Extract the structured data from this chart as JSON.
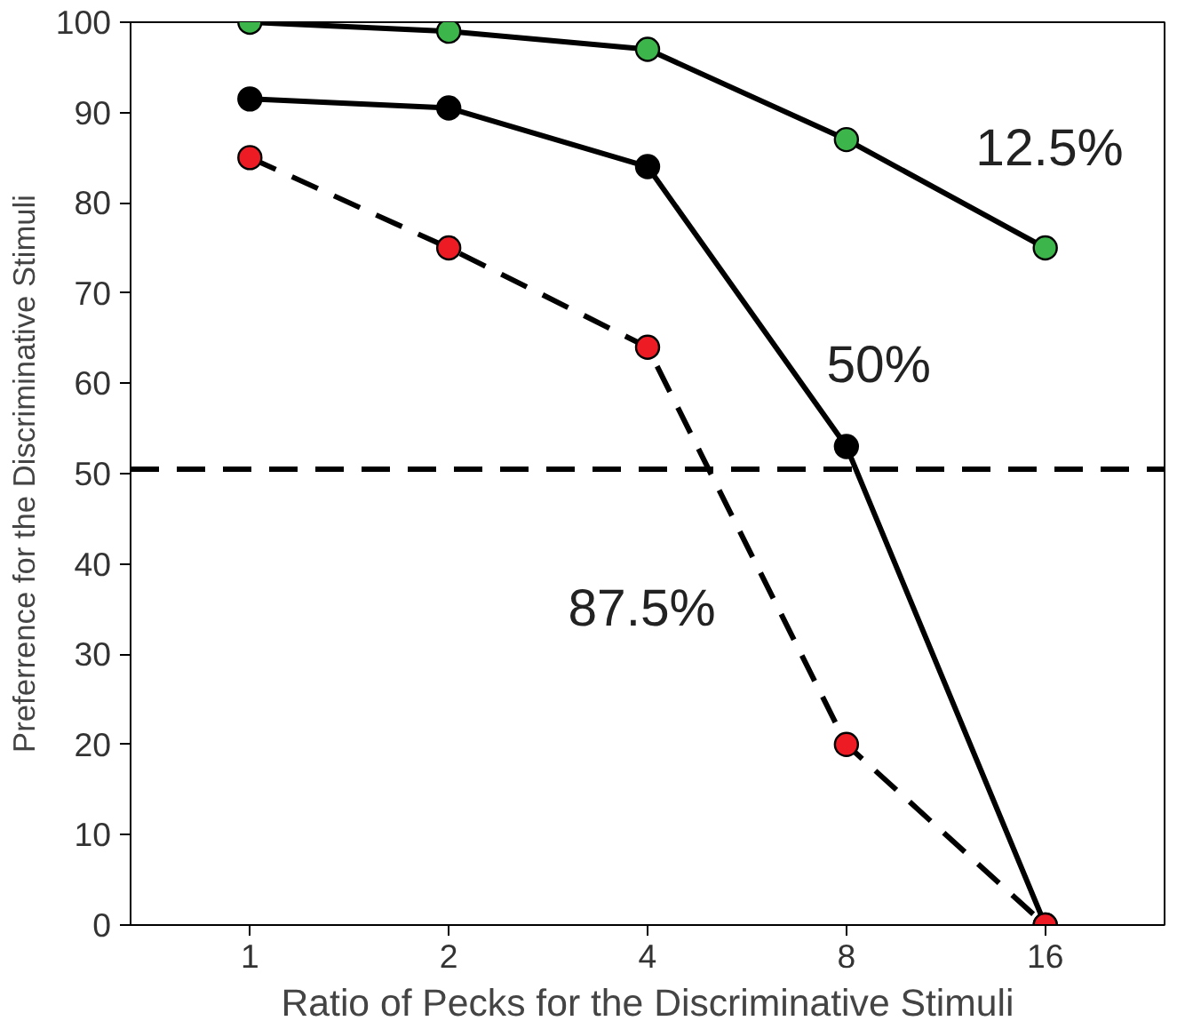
{
  "chart_data": {
    "type": "line",
    "xlabel": "Ratio of Pecks for the Discriminative Stimuli",
    "ylabel": "Preferrence for the Discriminative Stimuli",
    "categories": [
      "1",
      "2",
      "4",
      "8",
      "16"
    ],
    "ylim": [
      0,
      100
    ],
    "yticks": [
      0,
      10,
      20,
      30,
      40,
      50,
      60,
      70,
      80,
      90,
      100
    ],
    "marker": "circle",
    "grid": false,
    "series": [
      {
        "name": "12.5%",
        "color": "#3cb54a",
        "values": [
          100,
          99,
          97,
          87,
          75
        ],
        "line_style": "solid"
      },
      {
        "name": "50%",
        "color": "#000000",
        "values": [
          91.5,
          90.5,
          84,
          53,
          0
        ],
        "line_style": "solid"
      },
      {
        "name": "87.5%",
        "color": "#ed1c24",
        "values": [
          85,
          75,
          64,
          20,
          0
        ],
        "line_style": "dashed"
      }
    ],
    "ref_lines": [
      {
        "axis": "y",
        "value": 50.5,
        "line_style": "dashed",
        "color": "#000000"
      }
    ]
  }
}
